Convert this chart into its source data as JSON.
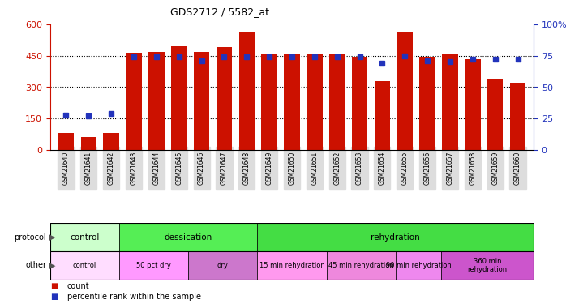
{
  "title": "GDS2712 / 5582_at",
  "samples": [
    "GSM21640",
    "GSM21641",
    "GSM21642",
    "GSM21643",
    "GSM21644",
    "GSM21645",
    "GSM21646",
    "GSM21647",
    "GSM21648",
    "GSM21649",
    "GSM21650",
    "GSM21651",
    "GSM21652",
    "GSM21653",
    "GSM21654",
    "GSM21655",
    "GSM21656",
    "GSM21657",
    "GSM21658",
    "GSM21659",
    "GSM21660"
  ],
  "counts": [
    82,
    62,
    80,
    465,
    468,
    495,
    468,
    490,
    565,
    455,
    458,
    460,
    455,
    445,
    330,
    565,
    445,
    460,
    435,
    340,
    320
  ],
  "percentiles": [
    28,
    27,
    29,
    74,
    74,
    74,
    71,
    74,
    74,
    74,
    74,
    74,
    74,
    74,
    69,
    75,
    71,
    70,
    72,
    72,
    72
  ],
  "bar_color": "#CC1100",
  "dot_color": "#2233BB",
  "ylim_left": [
    0,
    600
  ],
  "ylim_right": [
    0,
    100
  ],
  "yticks_left": [
    0,
    150,
    300,
    450,
    600
  ],
  "yticks_right": [
    0,
    25,
    50,
    75,
    100
  ],
  "ytick_labels_right": [
    "0",
    "25",
    "50",
    "75",
    "100%"
  ],
  "grid_yticks": [
    150,
    300,
    450
  ],
  "protocol_regions": [
    {
      "label": "control",
      "start": 0,
      "end": 3,
      "color": "#CCFFCC"
    },
    {
      "label": "dessication",
      "start": 3,
      "end": 9,
      "color": "#55EE55"
    },
    {
      "label": "rehydration",
      "start": 9,
      "end": 21,
      "color": "#44DD44"
    }
  ],
  "other_regions": [
    {
      "label": "control",
      "start": 0,
      "end": 3,
      "color": "#FFDDFF"
    },
    {
      "label": "50 pct dry",
      "start": 3,
      "end": 6,
      "color": "#FF99FF"
    },
    {
      "label": "dry",
      "start": 6,
      "end": 9,
      "color": "#CC77CC"
    },
    {
      "label": "15 min rehydration",
      "start": 9,
      "end": 12,
      "color": "#FF99EE"
    },
    {
      "label": "45 min rehydration",
      "start": 12,
      "end": 15,
      "color": "#EE88DD"
    },
    {
      "label": "90 min rehydration",
      "start": 15,
      "end": 17,
      "color": "#EE88EE"
    },
    {
      "label": "360 min\nrehydration",
      "start": 17,
      "end": 21,
      "color": "#CC55CC"
    }
  ],
  "background_color": "#FFFFFF",
  "left_axis_color": "#CC1100",
  "right_axis_color": "#2233BB",
  "strip_label_color": "#555555",
  "xtick_bg_color": "#DDDDDD"
}
